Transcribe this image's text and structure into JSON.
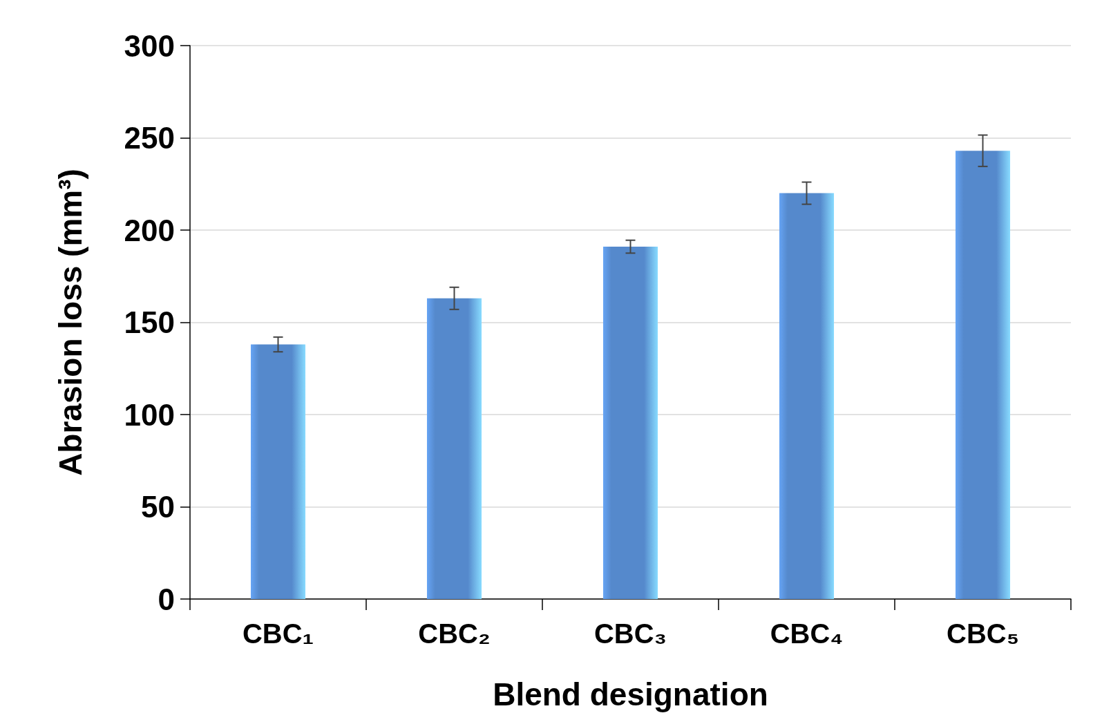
{
  "chart_data": {
    "type": "bar",
    "xlabel": "Blend designation",
    "ylabel": "Abrasion loss (mm³)",
    "categories": [
      "CBC₁",
      "CBC₂",
      "CBC₃",
      "CBC₄",
      "CBC₅"
    ],
    "values": [
      138,
      163,
      191,
      220,
      243
    ],
    "errors": [
      4,
      6,
      3.5,
      6,
      8.5
    ],
    "color": "#5589cc",
    "ylim": [
      0,
      300
    ],
    "yticks": [
      0,
      50,
      100,
      150,
      200,
      250,
      300
    ],
    "grid": "y"
  }
}
